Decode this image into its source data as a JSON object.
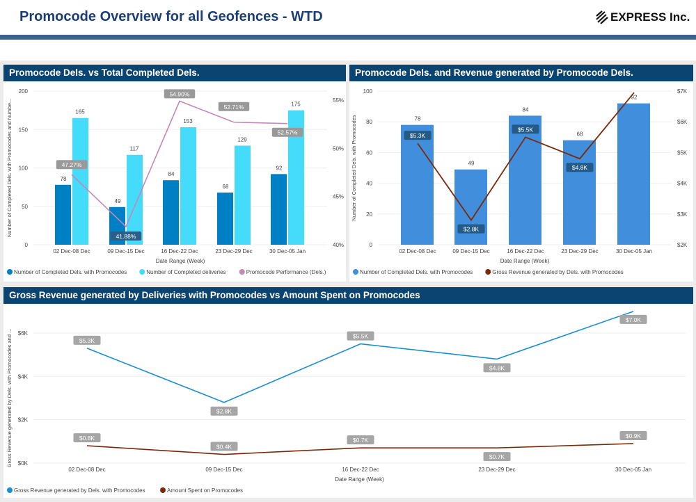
{
  "header": {
    "title": "Promocode Overview for all Geofences - WTD",
    "logo_text": "EXPRESS Inc."
  },
  "colors": {
    "header_bar": "#3c5f94",
    "panel_title_bg": "#0b4470",
    "dark_blue": "#0080c4",
    "light_blue": "#45dcfc",
    "pink": "#c487b8",
    "bar_blue": "#418edc",
    "brown": "#7a2a0a",
    "line_blue": "#1a8fd0"
  },
  "panels": [
    {
      "title": "Promocode Dels. vs Total Completed Dels."
    },
    {
      "title": "Promocode Dels. and Revenue generated by Promocode Dels."
    },
    {
      "title": "Gross Revenue generated by Deliveries with Promocodes vs Amount Spent on Promocodes"
    }
  ],
  "chart_data": [
    {
      "type": "bar",
      "categories": [
        "02 Dec-08 Dec",
        "09 Dec-15 Dec",
        "16 Dec-22 Dec",
        "23 Dec-29 Dec",
        "30 Dec-05 Jan"
      ],
      "xlabel": "Date Range (Week)",
      "ylabel": "Number of Completed Dels. with Promocodes and Numbe...",
      "ylim": [
        0,
        200
      ],
      "yticks": [
        "0",
        "50",
        "100",
        "150",
        "200"
      ],
      "y2lim": [
        40,
        55
      ],
      "y2ticks": [
        "40%",
        "45%",
        "50%",
        "55%"
      ],
      "legend_position": "bottom-left",
      "series": [
        {
          "name": "Number of Completed Dels. with Promocodes",
          "kind": "bar",
          "values": [
            78,
            49,
            84,
            68,
            92
          ],
          "labels": [
            "78",
            "49",
            "84",
            "68",
            "92"
          ]
        },
        {
          "name": "Number of Completed deliveries",
          "kind": "bar",
          "values": [
            165,
            117,
            153,
            129,
            175
          ],
          "labels": [
            "165",
            "117",
            "153",
            "129",
            "175"
          ]
        },
        {
          "name": "Promocode Performance (Dels.)",
          "kind": "line",
          "axis": "right",
          "values": [
            47.27,
            41.88,
            54.9,
            52.71,
            52.57
          ],
          "labels": [
            "47.27%",
            "41.88%",
            "54.90%",
            "52.71%",
            "52.57%"
          ]
        }
      ]
    },
    {
      "type": "bar",
      "categories": [
        "02 Dec-08 Dec",
        "09 Dec-15 Dec",
        "16 Dec-22 Dec",
        "23 Dec-29 Dec",
        "30 Dec-05 Jan"
      ],
      "xlabel": "Date Range (Week)",
      "ylabel": "Number of Completed Dels. with Promocodes",
      "ylim": [
        0,
        100
      ],
      "yticks": [
        "0",
        "20",
        "40",
        "60",
        "80",
        "100"
      ],
      "y2lim": [
        2000,
        7000
      ],
      "y2ticks": [
        "$2K",
        "$3K",
        "$4K",
        "$5K",
        "$6K",
        "$7K"
      ],
      "legend_position": "bottom-left",
      "series": [
        {
          "name": "Number of Completed Dels. with Promocodes",
          "kind": "bar",
          "values": [
            78,
            49,
            84,
            68,
            92
          ],
          "labels": [
            "78",
            "49",
            "84",
            "68",
            "92"
          ]
        },
        {
          "name": "Gross Revenue generated by Dels. with Promocodes",
          "kind": "line",
          "axis": "right",
          "values": [
            5300,
            2800,
            5500,
            4800,
            6950
          ],
          "labels": [
            "$5.3K",
            "$2.8K",
            "$5.5K",
            "$4.8K",
            ""
          ]
        }
      ]
    },
    {
      "type": "line",
      "categories": [
        "02 Dec-08 Dec",
        "09 Dec-15 Dec",
        "16 Dec-22 Dec",
        "23 Dec-29 Dec",
        "30 Dec-05 Jan"
      ],
      "xlabel": "Date Range (Week)",
      "ylabel": "Gross Revenue generated by Dels. with Promocodes and ...",
      "ylim": [
        0,
        7000
      ],
      "yticks": [
        "$0K",
        "$2K",
        "$4K",
        "$6K"
      ],
      "legend_position": "bottom-left",
      "series": [
        {
          "name": "Gross Revenue generated by Dels. with Promocodes",
          "values": [
            5300,
            2800,
            5500,
            4800,
            7000
          ],
          "labels": [
            "$5.3K",
            "$2.8K",
            "$5.5K",
            "$4.8K",
            "$7.0K"
          ]
        },
        {
          "name": "Amount Spent on Promocodes",
          "values": [
            800,
            400,
            700,
            700,
            900
          ],
          "labels": [
            "$0.8K",
            "$0.4K",
            "$0.7K",
            "$0.7K",
            "$0.9K"
          ]
        }
      ]
    }
  ]
}
